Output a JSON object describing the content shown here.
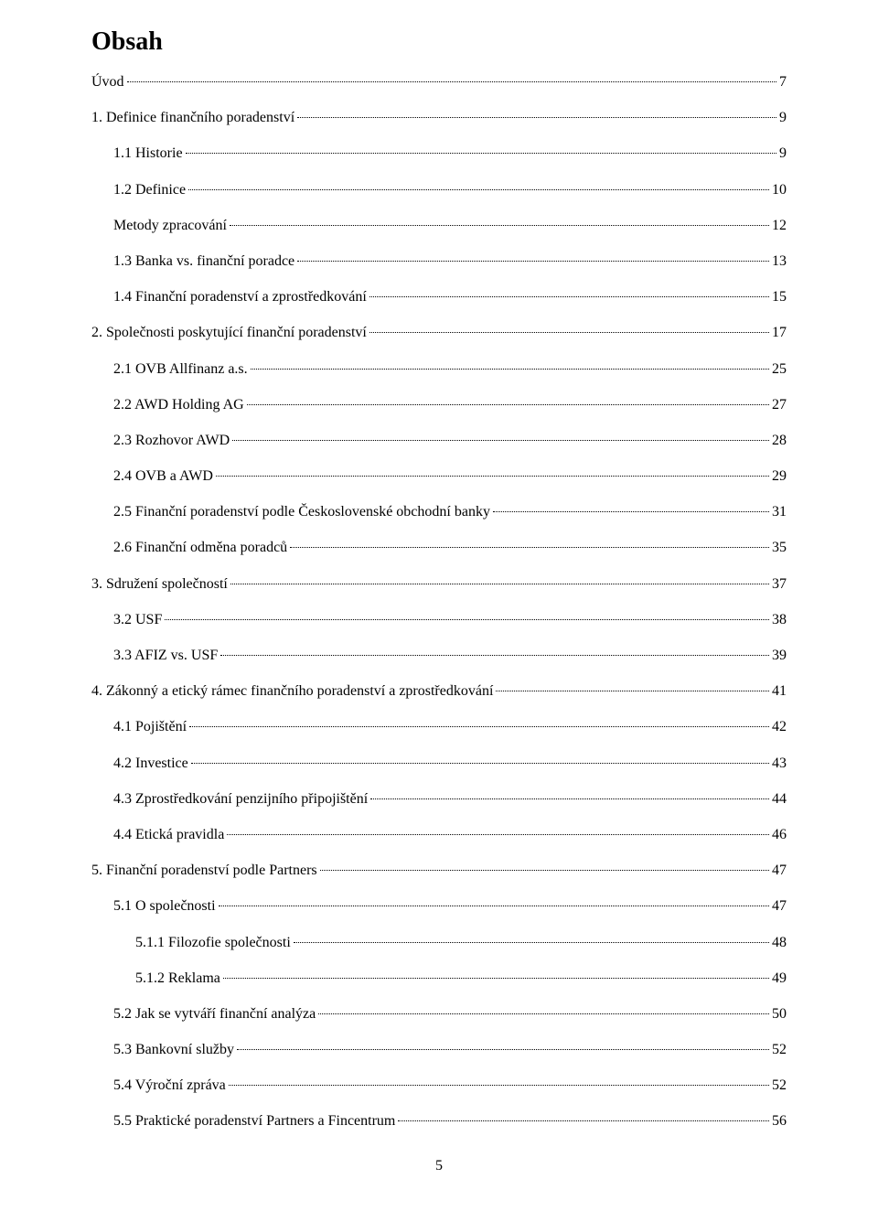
{
  "heading": "Obsah",
  "page_number": "5",
  "colors": {
    "text": "#000000",
    "background": "#ffffff"
  },
  "typography": {
    "heading_fontsize_pt": 21,
    "entry_fontsize_pt": 12,
    "font_family": "Times New Roman"
  },
  "entries": [
    {
      "label": "Úvod",
      "page": "7",
      "indent": 0
    },
    {
      "label": "1. Definice finančního poradenství",
      "page": "9",
      "indent": 0
    },
    {
      "label": "1.1 Historie",
      "page": "9",
      "indent": 1
    },
    {
      "label": "1.2 Definice",
      "page": "10",
      "indent": 1
    },
    {
      "label": "Metody zpracování",
      "page": "12",
      "indent": 1
    },
    {
      "label": "1.3 Banka vs. finanční poradce",
      "page": "13",
      "indent": 1
    },
    {
      "label": "1.4 Finanční poradenství a zprostředkování",
      "page": "15",
      "indent": 1
    },
    {
      "label": "2. Společnosti poskytující finanční poradenství",
      "page": "17",
      "indent": 0
    },
    {
      "label": "2.1 OVB Allfinanz a.s.",
      "page": "25",
      "indent": 1
    },
    {
      "label": "2.2 AWD Holding AG",
      "page": "27",
      "indent": 1
    },
    {
      "label": "2.3 Rozhovor AWD",
      "page": "28",
      "indent": 1
    },
    {
      "label": "2.4 OVB a AWD",
      "page": "29",
      "indent": 1
    },
    {
      "label": "2.5 Finanční poradenství podle Československé obchodní banky",
      "page": "31",
      "indent": 1
    },
    {
      "label": "2.6 Finanční odměna poradců",
      "page": "35",
      "indent": 1
    },
    {
      "label": "3. Sdružení společností",
      "page": "37",
      "indent": 0
    },
    {
      "label": "3.2 USF",
      "page": "38",
      "indent": 1
    },
    {
      "label": "3.3 AFIZ vs. USF",
      "page": "39",
      "indent": 1
    },
    {
      "label": "4. Zákonný a etický rámec finančního poradenství a zprostředkování",
      "page": "41",
      "indent": 0
    },
    {
      "label": "4.1 Pojištění",
      "page": "42",
      "indent": 1
    },
    {
      "label": "4.2 Investice",
      "page": "43",
      "indent": 1
    },
    {
      "label": "4.3 Zprostředkování penzijního připojištění",
      "page": "44",
      "indent": 1
    },
    {
      "label": "4.4 Etická pravidla",
      "page": "46",
      "indent": 1
    },
    {
      "label": "5. Finanční poradenství podle Partners",
      "page": "47",
      "indent": 0
    },
    {
      "label": "5.1 O společnosti",
      "page": "47",
      "indent": 1
    },
    {
      "label": "5.1.1 Filozofie společnosti",
      "page": "48",
      "indent": 2
    },
    {
      "label": "5.1.2 Reklama",
      "page": "49",
      "indent": 2
    },
    {
      "label": "5.2 Jak se vytváří finanční analýza",
      "page": "50",
      "indent": 1
    },
    {
      "label": "5.3 Bankovní služby",
      "page": "52",
      "indent": 1
    },
    {
      "label": "5.4 Výroční zpráva",
      "page": "52",
      "indent": 1
    },
    {
      "label": "5.5 Praktické poradenství Partners a Fincentrum",
      "page": "56",
      "indent": 1
    }
  ]
}
